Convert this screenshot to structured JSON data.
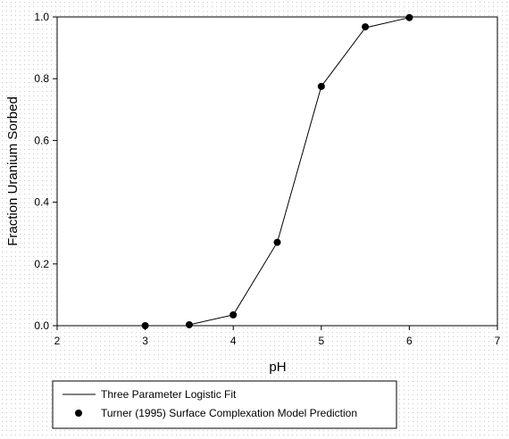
{
  "chart_data": {
    "type": "line",
    "xlabel": "pH",
    "ylabel": "Fraction Uranium Sorbed",
    "xlim": [
      2,
      7
    ],
    "ylim": [
      0.0,
      1.0
    ],
    "x_ticks": [
      "2",
      "3",
      "4",
      "5",
      "6",
      "7"
    ],
    "y_ticks": [
      "0.0",
      "0.2",
      "0.4",
      "0.6",
      "0.8",
      "1.0"
    ],
    "x_tick_values": [
      2,
      3,
      4,
      5,
      6,
      7
    ],
    "y_tick_values": [
      0.0,
      0.2,
      0.4,
      0.6,
      0.8,
      1.0
    ],
    "grid": false,
    "legend_position": "bottom",
    "series": [
      {
        "name": "Three Parameter Logistic Fit",
        "style": "line",
        "color": "#000000",
        "x": [
          3.5,
          4.0,
          4.5,
          5.0,
          5.5,
          6.0
        ],
        "y": [
          0.003,
          0.035,
          0.27,
          0.775,
          0.965,
          0.998
        ]
      },
      {
        "name": "Turner (1995) Surface Complexation Model Prediction",
        "style": "marker",
        "color": "#000000",
        "x": [
          3.0,
          3.5,
          4.0,
          4.5,
          5.0,
          5.5,
          6.0
        ],
        "y": [
          0.0,
          0.003,
          0.035,
          0.27,
          0.775,
          0.968,
          0.998
        ]
      }
    ]
  }
}
